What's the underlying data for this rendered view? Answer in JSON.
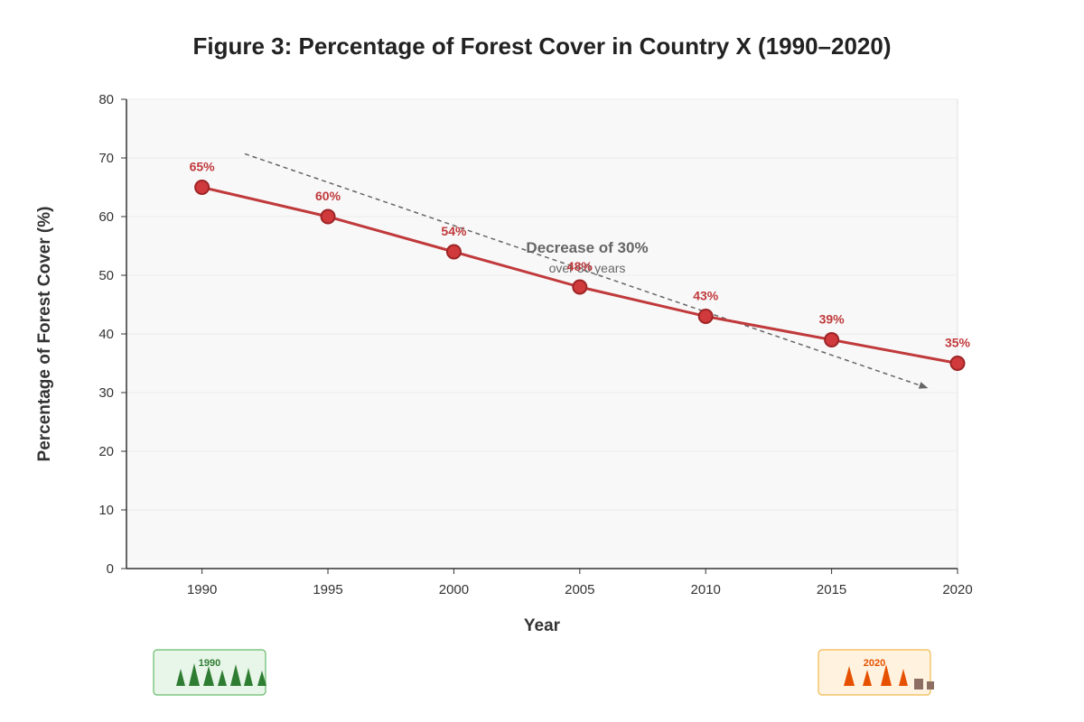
{
  "chart_data": {
    "type": "line",
    "title": "Figure 3: Percentage of Forest Cover in Country X (1990–2020)",
    "xlabel": "Year",
    "ylabel": "Percentage of Forest Cover (%)",
    "x": [
      1990,
      1995,
      2000,
      2005,
      2010,
      2015,
      2020
    ],
    "xlim": [
      1987,
      2020
    ],
    "ylim": [
      0,
      80
    ],
    "yticks": [
      0,
      10,
      20,
      30,
      40,
      50,
      60,
      70,
      80
    ],
    "grid": true,
    "series": [
      {
        "values": [
          65,
          60,
          54,
          48,
          43,
          39,
          35
        ],
        "labels": [
          "65%",
          "60%",
          "54%",
          "48%",
          "43%",
          "39%",
          "35%"
        ]
      }
    ],
    "annotation": {
      "title": "Decrease of 30%",
      "subtitle": "over 30 years",
      "trend_from": {
        "x": 1991.7,
        "y": 70.7
      },
      "trend_to": {
        "x": 2018.8,
        "y": 30.8
      }
    },
    "colors": {
      "line": "#c0393b",
      "marker_fill": "#d03a3c",
      "marker_stroke": "#9e2426",
      "trend": "#666666",
      "plot_bg": "#f8f8f8"
    }
  },
  "badges": {
    "start": {
      "label": "1990",
      "color": "#2e7d32",
      "bg": "#e8f5e9",
      "border": "#66bb6a"
    },
    "end": {
      "label": "2020",
      "color": "#e65100",
      "bg": "#fff3e0",
      "border": "#f0b94d"
    }
  }
}
